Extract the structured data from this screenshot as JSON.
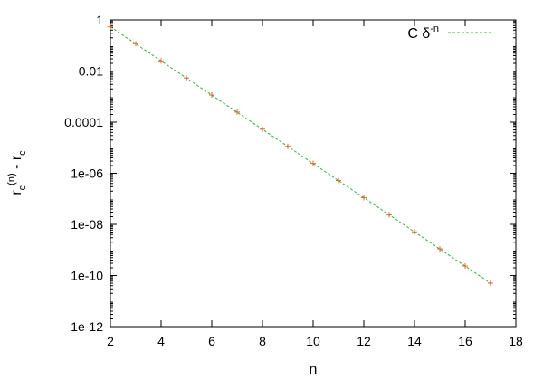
{
  "chart_data": {
    "type": "scatter",
    "xlabel": "n",
    "ylabel": {
      "base": "r",
      "sub1": "c",
      "sup": "(n)",
      "mid": " - r",
      "sub2": "c"
    },
    "xlim": [
      2,
      18
    ],
    "ylim": [
      1e-12,
      1
    ],
    "yscale": "log",
    "xticks": [
      2,
      4,
      6,
      8,
      10,
      12,
      14,
      16,
      18
    ],
    "yticks": [
      {
        "value": 1,
        "label": "1"
      },
      {
        "value": 0.01,
        "label": "0.01"
      },
      {
        "value": 0.0001,
        "label": "0.0001"
      },
      {
        "value": 1e-06,
        "label": "1e-06"
      },
      {
        "value": 1e-08,
        "label": "1e-08"
      },
      {
        "value": 1e-10,
        "label": "1e-10"
      },
      {
        "value": 1e-12,
        "label": "1e-12"
      }
    ],
    "grid": false,
    "legend_position": "top-right",
    "series": [
      {
        "kind": "points",
        "marker": "+",
        "color": "#e8612c",
        "x": [
          2,
          3,
          4,
          5,
          6,
          7,
          8,
          9,
          10,
          11,
          12,
          13,
          14,
          15,
          16,
          17
        ],
        "y": [
          0.536,
          0.117,
          0.0249,
          0.00538,
          0.00115,
          0.000247,
          5.29e-05,
          1.13e-05,
          2.43e-06,
          5.2e-07,
          1.11e-07,
          2.39e-08,
          5.1e-09,
          1.1e-09,
          2.35e-10,
          5e-11
        ]
      },
      {
        "kind": "line",
        "name": "C δ-n",
        "name_parts": {
          "main": "C δ",
          "sup": "-n"
        },
        "color": "#2fb82f",
        "dash": "3,2",
        "x": [
          2,
          17
        ],
        "y": [
          0.54,
          5e-11
        ]
      }
    ]
  }
}
